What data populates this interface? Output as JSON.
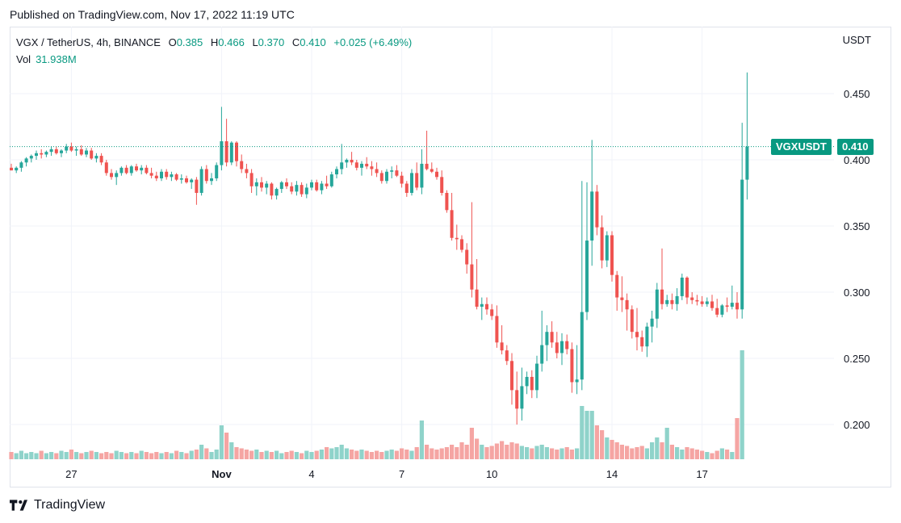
{
  "header": {
    "published": "Published on TradingView.com, Nov 17, 2022 11:19 UTC"
  },
  "legend": {
    "symbol": "VGX / TetherUS, 4h, BINANCE",
    "o_label": "O",
    "o_value": "0.385",
    "h_label": "H",
    "h_value": "0.466",
    "l_label": "L",
    "l_value": "0.370",
    "c_label": "C",
    "c_value": "0.410",
    "change": "+0.025 (+6.49%)",
    "vol_label": "Vol",
    "vol_value": "31.938M"
  },
  "axis": {
    "currency": "USDT"
  },
  "price_tag": {
    "symbol": "VGXUSDT",
    "value": "0.410"
  },
  "footer": {
    "brand": "TradingView"
  },
  "colors": {
    "up": "#26a69a",
    "down": "#ef5350",
    "vol_up": "#8fd3ca",
    "vol_down": "#f5a5a3",
    "grid": "#f0f3fa",
    "tag": "#089981"
  },
  "chart_data": {
    "type": "candlestick",
    "ylim": [
      0.175,
      0.475
    ],
    "y_ticks": [
      0.2,
      0.25,
      0.3,
      0.35,
      0.4,
      0.45
    ],
    "y_tick_labels": [
      "0.200",
      "0.250",
      "0.300",
      "0.350",
      "0.400",
      "0.450"
    ],
    "x_ticks": [
      {
        "label": "27",
        "bar": 12
      },
      {
        "label": "Nov",
        "bar": 42
      },
      {
        "label": "4",
        "bar": 60
      },
      {
        "label": "7",
        "bar": 78
      },
      {
        "label": "10",
        "bar": 96
      },
      {
        "label": "14",
        "bar": 120
      },
      {
        "label": "17",
        "bar": 138
      }
    ],
    "last_price": 0.41,
    "candles": [
      [
        0.394,
        0.397,
        0.392,
        0.392
      ],
      [
        0.392,
        0.395,
        0.39,
        0.394
      ],
      [
        0.394,
        0.399,
        0.391,
        0.398
      ],
      [
        0.398,
        0.402,
        0.395,
        0.401
      ],
      [
        0.401,
        0.404,
        0.398,
        0.403
      ],
      [
        0.403,
        0.407,
        0.4,
        0.405
      ],
      [
        0.405,
        0.408,
        0.401,
        0.404
      ],
      [
        0.404,
        0.407,
        0.402,
        0.406
      ],
      [
        0.406,
        0.41,
        0.403,
        0.408
      ],
      [
        0.408,
        0.41,
        0.404,
        0.405
      ],
      [
        0.405,
        0.408,
        0.402,
        0.407
      ],
      [
        0.407,
        0.412,
        0.405,
        0.41
      ],
      [
        0.41,
        0.413,
        0.406,
        0.407
      ],
      [
        0.407,
        0.41,
        0.403,
        0.408
      ],
      [
        0.408,
        0.411,
        0.403,
        0.404
      ],
      [
        0.404,
        0.409,
        0.402,
        0.407
      ],
      [
        0.407,
        0.409,
        0.4,
        0.401
      ],
      [
        0.401,
        0.405,
        0.398,
        0.403
      ],
      [
        0.403,
        0.405,
        0.396,
        0.398
      ],
      [
        0.398,
        0.4,
        0.388,
        0.39
      ],
      [
        0.39,
        0.393,
        0.385,
        0.387
      ],
      [
        0.387,
        0.392,
        0.381,
        0.39
      ],
      [
        0.39,
        0.395,
        0.388,
        0.394
      ],
      [
        0.394,
        0.396,
        0.389,
        0.39
      ],
      [
        0.39,
        0.396,
        0.388,
        0.395
      ],
      [
        0.395,
        0.397,
        0.391,
        0.392
      ],
      [
        0.392,
        0.396,
        0.389,
        0.394
      ],
      [
        0.394,
        0.396,
        0.389,
        0.39
      ],
      [
        0.39,
        0.394,
        0.386,
        0.388
      ],
      [
        0.388,
        0.391,
        0.384,
        0.386
      ],
      [
        0.386,
        0.393,
        0.384,
        0.391
      ],
      [
        0.391,
        0.393,
        0.385,
        0.387
      ],
      [
        0.387,
        0.391,
        0.384,
        0.389
      ],
      [
        0.389,
        0.39,
        0.384,
        0.385
      ],
      [
        0.385,
        0.389,
        0.382,
        0.386
      ],
      [
        0.386,
        0.388,
        0.382,
        0.383
      ],
      [
        0.383,
        0.386,
        0.378,
        0.385
      ],
      [
        0.385,
        0.387,
        0.366,
        0.375
      ],
      [
        0.375,
        0.395,
        0.373,
        0.393
      ],
      [
        0.393,
        0.396,
        0.382,
        0.384
      ],
      [
        0.384,
        0.39,
        0.381,
        0.386
      ],
      [
        0.386,
        0.398,
        0.384,
        0.396
      ],
      [
        0.396,
        0.44,
        0.392,
        0.414
      ],
      [
        0.414,
        0.431,
        0.395,
        0.398
      ],
      [
        0.398,
        0.414,
        0.396,
        0.413
      ],
      [
        0.413,
        0.414,
        0.395,
        0.399
      ],
      [
        0.399,
        0.404,
        0.39,
        0.393
      ],
      [
        0.393,
        0.397,
        0.386,
        0.39
      ],
      [
        0.39,
        0.393,
        0.375,
        0.38
      ],
      [
        0.38,
        0.386,
        0.373,
        0.383
      ],
      [
        0.383,
        0.387,
        0.376,
        0.379
      ],
      [
        0.379,
        0.384,
        0.374,
        0.382
      ],
      [
        0.382,
        0.383,
        0.37,
        0.373
      ],
      [
        0.373,
        0.379,
        0.37,
        0.378
      ],
      [
        0.378,
        0.384,
        0.375,
        0.383
      ],
      [
        0.383,
        0.386,
        0.378,
        0.38
      ],
      [
        0.38,
        0.383,
        0.374,
        0.376
      ],
      [
        0.376,
        0.384,
        0.373,
        0.381
      ],
      [
        0.381,
        0.383,
        0.372,
        0.374
      ],
      [
        0.374,
        0.382,
        0.371,
        0.379
      ],
      [
        0.379,
        0.385,
        0.377,
        0.383
      ],
      [
        0.383,
        0.385,
        0.376,
        0.377
      ],
      [
        0.377,
        0.384,
        0.374,
        0.382
      ],
      [
        0.382,
        0.388,
        0.378,
        0.38
      ],
      [
        0.38,
        0.391,
        0.379,
        0.389
      ],
      [
        0.389,
        0.395,
        0.386,
        0.393
      ],
      [
        0.393,
        0.412,
        0.389,
        0.398
      ],
      [
        0.398,
        0.401,
        0.394,
        0.4
      ],
      [
        0.4,
        0.406,
        0.396,
        0.398
      ],
      [
        0.398,
        0.4,
        0.392,
        0.394
      ],
      [
        0.394,
        0.399,
        0.388,
        0.397
      ],
      [
        0.397,
        0.402,
        0.393,
        0.395
      ],
      [
        0.395,
        0.399,
        0.388,
        0.393
      ],
      [
        0.393,
        0.398,
        0.387,
        0.39
      ],
      [
        0.39,
        0.392,
        0.382,
        0.384
      ],
      [
        0.384,
        0.393,
        0.382,
        0.391
      ],
      [
        0.391,
        0.395,
        0.386,
        0.392
      ],
      [
        0.392,
        0.396,
        0.387,
        0.388
      ],
      [
        0.388,
        0.391,
        0.379,
        0.382
      ],
      [
        0.382,
        0.384,
        0.372,
        0.375
      ],
      [
        0.375,
        0.393,
        0.373,
        0.39
      ],
      [
        0.39,
        0.398,
        0.377,
        0.379
      ],
      [
        0.379,
        0.408,
        0.374,
        0.397
      ],
      [
        0.397,
        0.422,
        0.392,
        0.393
      ],
      [
        0.393,
        0.398,
        0.39,
        0.391
      ],
      [
        0.391,
        0.394,
        0.385,
        0.387
      ],
      [
        0.387,
        0.392,
        0.373,
        0.375
      ],
      [
        0.375,
        0.377,
        0.36,
        0.362
      ],
      [
        0.362,
        0.375,
        0.339,
        0.341
      ],
      [
        0.341,
        0.351,
        0.332,
        0.34
      ],
      [
        0.34,
        0.343,
        0.33,
        0.332
      ],
      [
        0.332,
        0.337,
        0.314,
        0.321
      ],
      [
        0.321,
        0.368,
        0.296,
        0.302
      ],
      [
        0.302,
        0.325,
        0.287,
        0.289
      ],
      [
        0.289,
        0.296,
        0.279,
        0.291
      ],
      [
        0.291,
        0.296,
        0.283,
        0.287
      ],
      [
        0.287,
        0.291,
        0.279,
        0.282
      ],
      [
        0.282,
        0.29,
        0.258,
        0.262
      ],
      [
        0.262,
        0.275,
        0.253,
        0.256
      ],
      [
        0.256,
        0.26,
        0.245,
        0.248
      ],
      [
        0.248,
        0.254,
        0.215,
        0.226
      ],
      [
        0.226,
        0.24,
        0.2,
        0.212
      ],
      [
        0.212,
        0.243,
        0.203,
        0.229
      ],
      [
        0.229,
        0.24,
        0.223,
        0.236
      ],
      [
        0.236,
        0.241,
        0.22,
        0.226
      ],
      [
        0.226,
        0.252,
        0.22,
        0.246
      ],
      [
        0.246,
        0.286,
        0.24,
        0.26
      ],
      [
        0.26,
        0.275,
        0.248,
        0.27
      ],
      [
        0.27,
        0.278,
        0.258,
        0.262
      ],
      [
        0.262,
        0.27,
        0.25,
        0.254
      ],
      [
        0.254,
        0.269,
        0.245,
        0.263
      ],
      [
        0.263,
        0.268,
        0.253,
        0.257
      ],
      [
        0.257,
        0.262,
        0.224,
        0.232
      ],
      [
        0.232,
        0.26,
        0.223,
        0.234
      ],
      [
        0.234,
        0.384,
        0.226,
        0.285
      ],
      [
        0.285,
        0.383,
        0.279,
        0.339
      ],
      [
        0.339,
        0.415,
        0.32,
        0.376
      ],
      [
        0.376,
        0.381,
        0.343,
        0.349
      ],
      [
        0.349,
        0.358,
        0.318,
        0.324
      ],
      [
        0.324,
        0.346,
        0.319,
        0.343
      ],
      [
        0.343,
        0.346,
        0.308,
        0.313
      ],
      [
        0.313,
        0.316,
        0.286,
        0.296
      ],
      [
        0.296,
        0.312,
        0.285,
        0.294
      ],
      [
        0.294,
        0.299,
        0.271,
        0.287
      ],
      [
        0.287,
        0.29,
        0.265,
        0.27
      ],
      [
        0.27,
        0.288,
        0.256,
        0.266
      ],
      [
        0.266,
        0.271,
        0.255,
        0.259
      ],
      [
        0.259,
        0.277,
        0.251,
        0.274
      ],
      [
        0.274,
        0.286,
        0.262,
        0.28
      ],
      [
        0.28,
        0.307,
        0.273,
        0.302
      ],
      [
        0.302,
        0.333,
        0.287,
        0.291
      ],
      [
        0.291,
        0.298,
        0.289,
        0.294
      ],
      [
        0.294,
        0.299,
        0.287,
        0.291
      ],
      [
        0.291,
        0.303,
        0.286,
        0.297
      ],
      [
        0.297,
        0.314,
        0.294,
        0.311
      ],
      [
        0.311,
        0.312,
        0.291,
        0.296
      ],
      [
        0.296,
        0.3,
        0.291,
        0.294
      ],
      [
        0.294,
        0.298,
        0.29,
        0.293
      ],
      [
        0.293,
        0.297,
        0.289,
        0.291
      ],
      [
        0.291,
        0.296,
        0.289,
        0.293
      ],
      [
        0.293,
        0.298,
        0.286,
        0.288
      ],
      [
        0.288,
        0.295,
        0.281,
        0.283
      ],
      [
        0.283,
        0.291,
        0.281,
        0.29
      ],
      [
        0.29,
        0.296,
        0.285,
        0.289
      ],
      [
        0.289,
        0.305,
        0.287,
        0.292
      ],
      [
        0.292,
        0.3,
        0.28,
        0.287
      ],
      [
        0.287,
        0.428,
        0.28,
        0.385
      ],
      [
        0.385,
        0.466,
        0.37,
        0.41
      ]
    ],
    "volumes": [
      0.06,
      0.05,
      0.07,
      0.05,
      0.06,
      0.05,
      0.07,
      0.05,
      0.06,
      0.05,
      0.07,
      0.06,
      0.08,
      0.06,
      0.05,
      0.06,
      0.07,
      0.06,
      0.05,
      0.06,
      0.05,
      0.07,
      0.06,
      0.05,
      0.06,
      0.05,
      0.07,
      0.06,
      0.05,
      0.06,
      0.05,
      0.06,
      0.05,
      0.07,
      0.06,
      0.05,
      0.07,
      0.08,
      0.12,
      0.09,
      0.06,
      0.08,
      0.28,
      0.22,
      0.14,
      0.1,
      0.09,
      0.08,
      0.07,
      0.08,
      0.06,
      0.07,
      0.06,
      0.07,
      0.05,
      0.06,
      0.07,
      0.06,
      0.05,
      0.07,
      0.06,
      0.07,
      0.08,
      0.1,
      0.09,
      0.1,
      0.12,
      0.09,
      0.08,
      0.07,
      0.08,
      0.07,
      0.06,
      0.07,
      0.06,
      0.07,
      0.08,
      0.07,
      0.09,
      0.08,
      0.07,
      0.1,
      0.32,
      0.12,
      0.09,
      0.08,
      0.09,
      0.1,
      0.12,
      0.1,
      0.14,
      0.12,
      0.26,
      0.17,
      0.12,
      0.1,
      0.11,
      0.13,
      0.15,
      0.12,
      0.14,
      0.13,
      0.11,
      0.1,
      0.09,
      0.11,
      0.12,
      0.1,
      0.09,
      0.08,
      0.09,
      0.1,
      0.08,
      0.09,
      0.44,
      0.4,
      0.4,
      0.28,
      0.24,
      0.18,
      0.16,
      0.14,
      0.12,
      0.11,
      0.09,
      0.1,
      0.11,
      0.09,
      0.14,
      0.18,
      0.14,
      0.26,
      0.12,
      0.1,
      0.08,
      0.1,
      0.09,
      0.08,
      0.07,
      0.06,
      0.05,
      0.07,
      0.09,
      0.08,
      0.06,
      0.34,
      0.9
    ]
  }
}
